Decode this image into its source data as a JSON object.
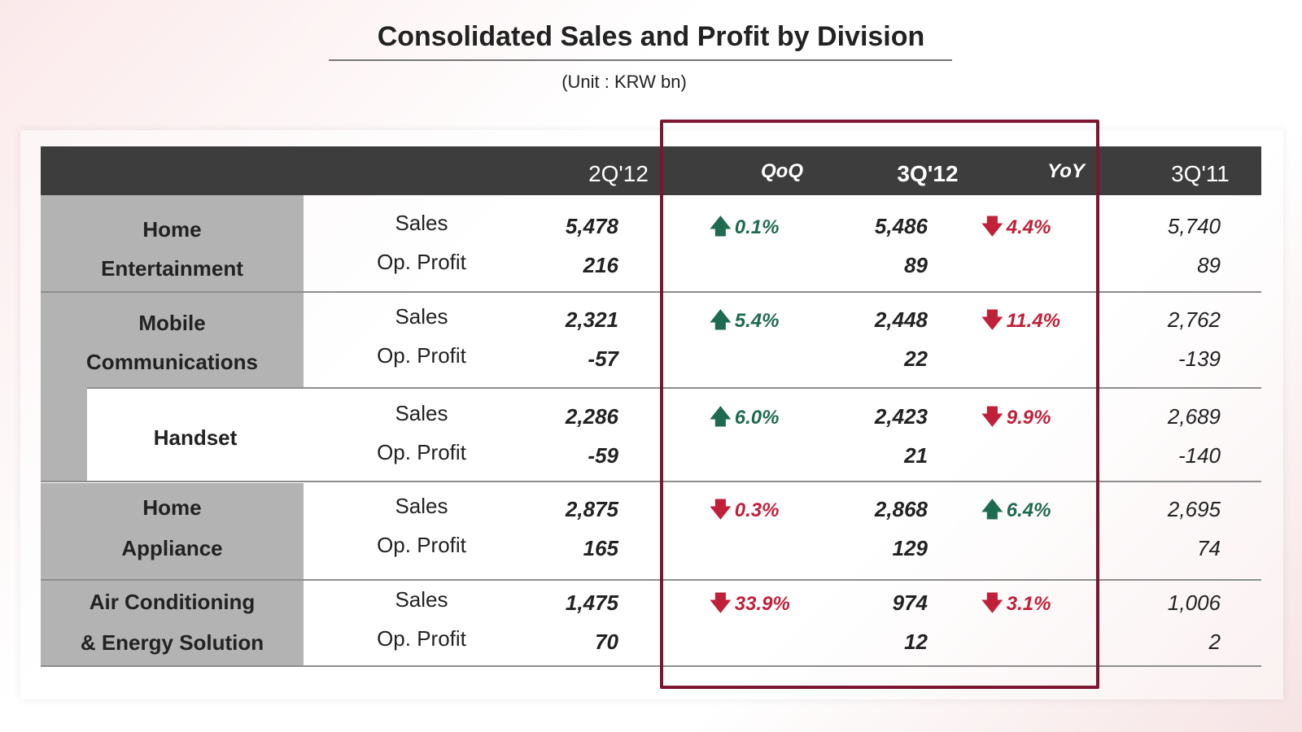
{
  "title": "Consolidated Sales and Profit by Division",
  "unit": "(Unit : KRW bn)",
  "colors": {
    "header_bg": "#3d3d3d",
    "label_bg": "#b3b3b3",
    "up": "#1f6b4f",
    "down": "#c0203a",
    "highlight": "#7d1530"
  },
  "columns": {
    "c2q12": "2Q'12",
    "qoq": "QoQ",
    "c3q12": "3Q'12",
    "yoy": "YoY",
    "c3q11": "3Q'11"
  },
  "metrics": {
    "sales": "Sales",
    "op_profit": "Op. Profit"
  },
  "rows": [
    {
      "division_line1": "Home",
      "division_line2": "Entertainment",
      "sales_2q12": "5,478",
      "op_2q12": "216",
      "qoq": "0.1%",
      "qoq_dir": "up-arrow-icon",
      "sales_3q12": "5,486",
      "op_3q12": "89",
      "yoy": "4.4%",
      "yoy_dir": "down-arrow-icon",
      "sales_3q11": "5,740",
      "op_3q11": "89"
    },
    {
      "division_line1": "Mobile",
      "division_line2": "Communications",
      "sales_2q12": "2,321",
      "op_2q12": "-57",
      "qoq": "5.4%",
      "qoq_dir": "up-arrow-icon",
      "sales_3q12": "2,448",
      "op_3q12": "22",
      "yoy": "11.4%",
      "yoy_dir": "down-arrow-icon",
      "sales_3q11": "2,762",
      "op_3q11": "-139"
    },
    {
      "division_line1": "Handset",
      "division_line2": "",
      "sales_2q12": "2,286",
      "op_2q12": "-59",
      "qoq": "6.0%",
      "qoq_dir": "up-arrow-icon",
      "sales_3q12": "2,423",
      "op_3q12": "21",
      "yoy": "9.9%",
      "yoy_dir": "down-arrow-icon",
      "sales_3q11": "2,689",
      "op_3q11": "-140"
    },
    {
      "division_line1": "Home",
      "division_line2": "Appliance",
      "sales_2q12": "2,875",
      "op_2q12": "165",
      "qoq": "0.3%",
      "qoq_dir": "down-arrow-icon",
      "sales_3q12": "2,868",
      "op_3q12": "129",
      "yoy": "6.4%",
      "yoy_dir": "up-arrow-icon",
      "sales_3q11": "2,695",
      "op_3q11": "74"
    },
    {
      "division_line1": "Air Conditioning",
      "division_line2": "& Energy Solution",
      "sales_2q12": "1,475",
      "op_2q12": "70",
      "qoq": "33.9%",
      "qoq_dir": "down-arrow-icon",
      "sales_3q12": "974",
      "op_3q12": "12",
      "yoy": "3.1%",
      "yoy_dir": "down-arrow-icon",
      "sales_3q11": "1,006",
      "op_3q11": "2"
    }
  ],
  "arrows": {
    "up": "🡅",
    "down": "🡇"
  }
}
